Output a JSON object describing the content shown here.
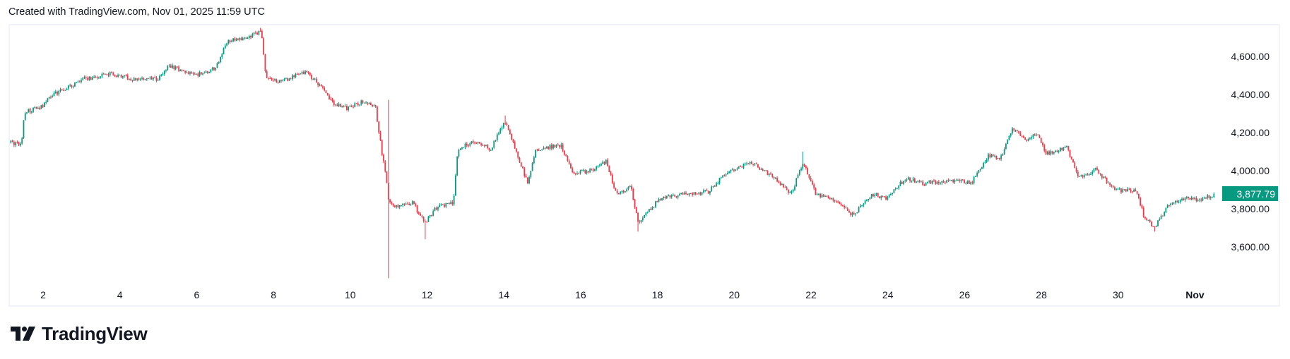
{
  "header": {
    "caption": "Created with TradingView.com, Nov 01, 2025 11:59 UTC"
  },
  "footer": {
    "brand": "TradingView"
  },
  "colors": {
    "up": "#089981",
    "down": "#F23645",
    "last_price_bg": "#089981",
    "frame": "#f0f3fa"
  },
  "chart_data": {
    "type": "candlestick",
    "title": "",
    "x_unit": "day of month (Oct 2025, 32 = Nov 1)",
    "xlim": [
      1.0,
      33.2
    ],
    "ylim": [
      3380,
      4780
    ],
    "grid": false,
    "y_ticks": [
      {
        "value": 4600,
        "label": "4,600.00"
      },
      {
        "value": 4400,
        "label": "4,400.00"
      },
      {
        "value": 4200,
        "label": "4,200.00"
      },
      {
        "value": 4000,
        "label": "4,000.00"
      },
      {
        "value": 3800,
        "label": "3,800.00"
      },
      {
        "value": 3600,
        "label": "3,600.00"
      }
    ],
    "x_ticks": [
      {
        "value": 2,
        "label": "2"
      },
      {
        "value": 4,
        "label": "4"
      },
      {
        "value": 6,
        "label": "6"
      },
      {
        "value": 8,
        "label": "8"
      },
      {
        "value": 10,
        "label": "10"
      },
      {
        "value": 12,
        "label": "12"
      },
      {
        "value": 14,
        "label": "14"
      },
      {
        "value": 16,
        "label": "16"
      },
      {
        "value": 18,
        "label": "18"
      },
      {
        "value": 20,
        "label": "20"
      },
      {
        "value": 22,
        "label": "22"
      },
      {
        "value": 24,
        "label": "24"
      },
      {
        "value": 26,
        "label": "26"
      },
      {
        "value": 28,
        "label": "28"
      },
      {
        "value": 30,
        "label": "30"
      },
      {
        "value": 32,
        "label": "Nov"
      }
    ],
    "last_price": {
      "value": 3877.79,
      "label": "3,877.79"
    },
    "candle_interval_hours": 1,
    "price_path": [
      [
        1.16,
        4147
      ],
      [
        1.44,
        4135
      ],
      [
        1.51,
        4307
      ],
      [
        1.98,
        4337
      ],
      [
        2.19,
        4393
      ],
      [
        2.84,
        4458
      ],
      [
        3.05,
        4480
      ],
      [
        3.8,
        4510
      ],
      [
        4.34,
        4480
      ],
      [
        4.98,
        4480
      ],
      [
        5.3,
        4553
      ],
      [
        5.94,
        4500
      ],
      [
        6.48,
        4535
      ],
      [
        6.8,
        4680
      ],
      [
        7.34,
        4695
      ],
      [
        7.68,
        4738
      ],
      [
        7.81,
        4480
      ],
      [
        8.19,
        4466
      ],
      [
        8.84,
        4522
      ],
      [
        9.16,
        4458
      ],
      [
        9.59,
        4350
      ],
      [
        9.91,
        4328
      ],
      [
        10.34,
        4363
      ],
      [
        10.66,
        4328
      ],
      [
        10.81,
        4113
      ],
      [
        10.94,
        3962
      ],
      [
        11.0,
        3833
      ],
      [
        11.3,
        3811
      ],
      [
        11.62,
        3833
      ],
      [
        11.94,
        3725
      ],
      [
        12.26,
        3811
      ],
      [
        12.69,
        3833
      ],
      [
        12.8,
        4113
      ],
      [
        13.23,
        4156
      ],
      [
        13.66,
        4113
      ],
      [
        14.02,
        4264
      ],
      [
        14.41,
        4048
      ],
      [
        14.62,
        3940
      ],
      [
        14.84,
        4113
      ],
      [
        15.48,
        4135
      ],
      [
        15.8,
        3984
      ],
      [
        16.33,
        4005
      ],
      [
        16.66,
        4048
      ],
      [
        16.94,
        3876
      ],
      [
        17.3,
        3919
      ],
      [
        17.51,
        3725
      ],
      [
        18.05,
        3854
      ],
      [
        18.69,
        3876
      ],
      [
        19.33,
        3889
      ],
      [
        19.76,
        3984
      ],
      [
        20.41,
        4048
      ],
      [
        21.05,
        3962
      ],
      [
        21.48,
        3876
      ],
      [
        21.8,
        4048
      ],
      [
        22.12,
        3876
      ],
      [
        22.76,
        3833
      ],
      [
        23.08,
        3768
      ],
      [
        23.62,
        3876
      ],
      [
        23.94,
        3854
      ],
      [
        24.48,
        3962
      ],
      [
        24.91,
        3932
      ],
      [
        25.55,
        3949
      ],
      [
        26.19,
        3940
      ],
      [
        26.62,
        4079
      ],
      [
        26.94,
        4070
      ],
      [
        27.26,
        4220
      ],
      [
        27.58,
        4156
      ],
      [
        27.86,
        4199
      ],
      [
        28.12,
        4091
      ],
      [
        28.66,
        4121
      ],
      [
        28.98,
        3962
      ],
      [
        29.41,
        4005
      ],
      [
        29.94,
        3897
      ],
      [
        30.48,
        3897
      ],
      [
        30.69,
        3747
      ],
      [
        30.95,
        3703
      ],
      [
        31.34,
        3833
      ],
      [
        31.76,
        3854
      ],
      [
        32.19,
        3846
      ],
      [
        32.5,
        3877.79
      ]
    ],
    "notable_wicks": [
      {
        "day": 7.68,
        "high": 4750
      },
      {
        "day": 11.0,
        "low": 3435,
        "high": 4372
      },
      {
        "day": 11.94,
        "low": 3640
      },
      {
        "day": 14.02,
        "high": 4290
      },
      {
        "day": 17.51,
        "low": 3680
      },
      {
        "day": 21.8,
        "high": 4100
      },
      {
        "day": 30.95,
        "low": 3680
      }
    ]
  }
}
